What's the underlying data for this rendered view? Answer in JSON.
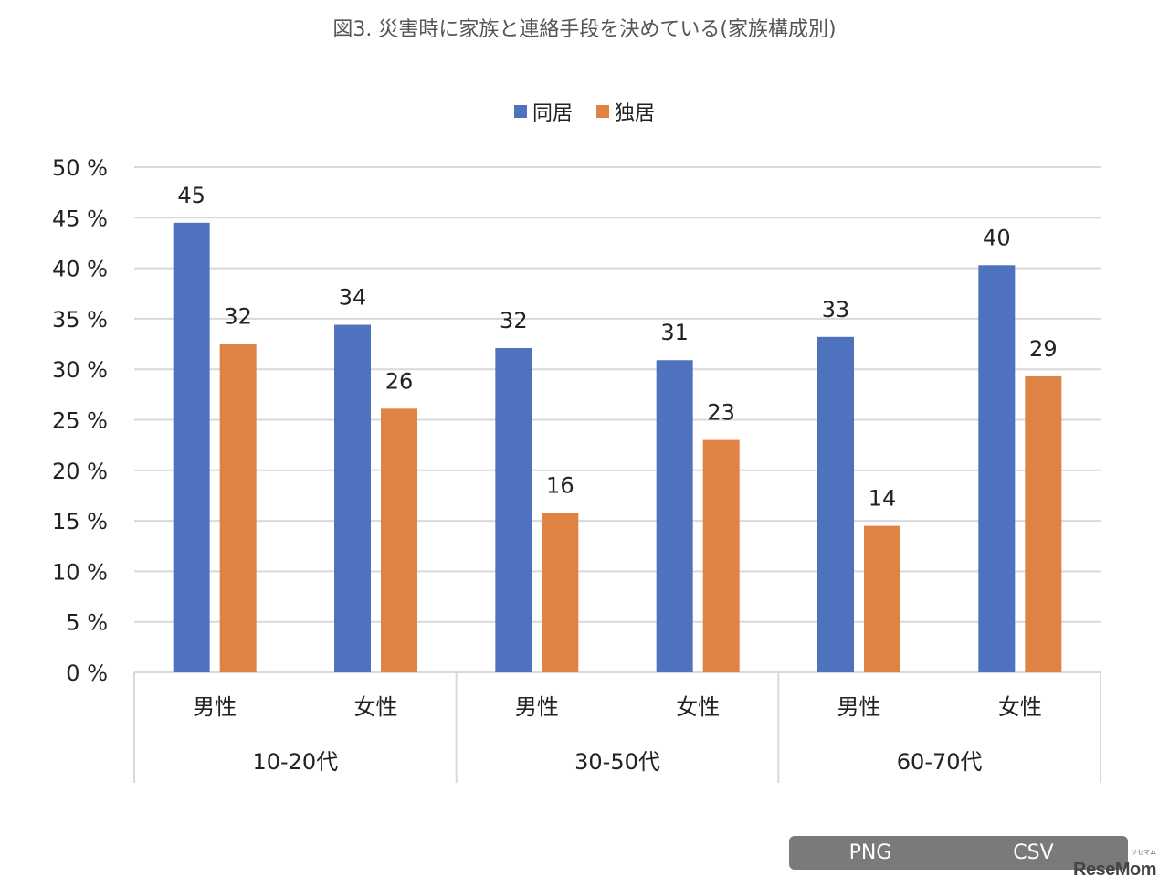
{
  "chart_data": {
    "type": "bar",
    "title": "図3. 災害時に家族と連絡手段を決めている(家族構成別)",
    "groups": [
      {
        "label": "10-20代",
        "categories": [
          "男性",
          "女性"
        ]
      },
      {
        "label": "30-50代",
        "categories": [
          "男性",
          "女性"
        ]
      },
      {
        "label": "60-70代",
        "categories": [
          "男性",
          "女性"
        ]
      }
    ],
    "categories": [
      "男性",
      "女性",
      "男性",
      "女性",
      "男性",
      "女性"
    ],
    "series": [
      {
        "name": "同居",
        "color": "#4F72BE",
        "values": [
          44.5,
          34.4,
          32.1,
          30.9,
          33.2,
          40.3
        ],
        "labels": [
          "45",
          "34",
          "32",
          "31",
          "33",
          "40"
        ]
      },
      {
        "name": "独居",
        "color": "#DE8344",
        "values": [
          32.5,
          26.1,
          15.8,
          23.0,
          14.5,
          29.3
        ],
        "labels": [
          "32",
          "26",
          "16",
          "23",
          "14",
          "29"
        ]
      }
    ],
    "ylim": [
      0,
      50
    ],
    "yticks": [
      0,
      5,
      10,
      15,
      20,
      25,
      30,
      35,
      40,
      45,
      50
    ],
    "ytick_suffix": " %",
    "grid": true,
    "legend": "top-center"
  },
  "buttons": {
    "png": "PNG",
    "csv": "CSV"
  },
  "watermark": "ReseMom",
  "watermark_sub": "リセマム"
}
